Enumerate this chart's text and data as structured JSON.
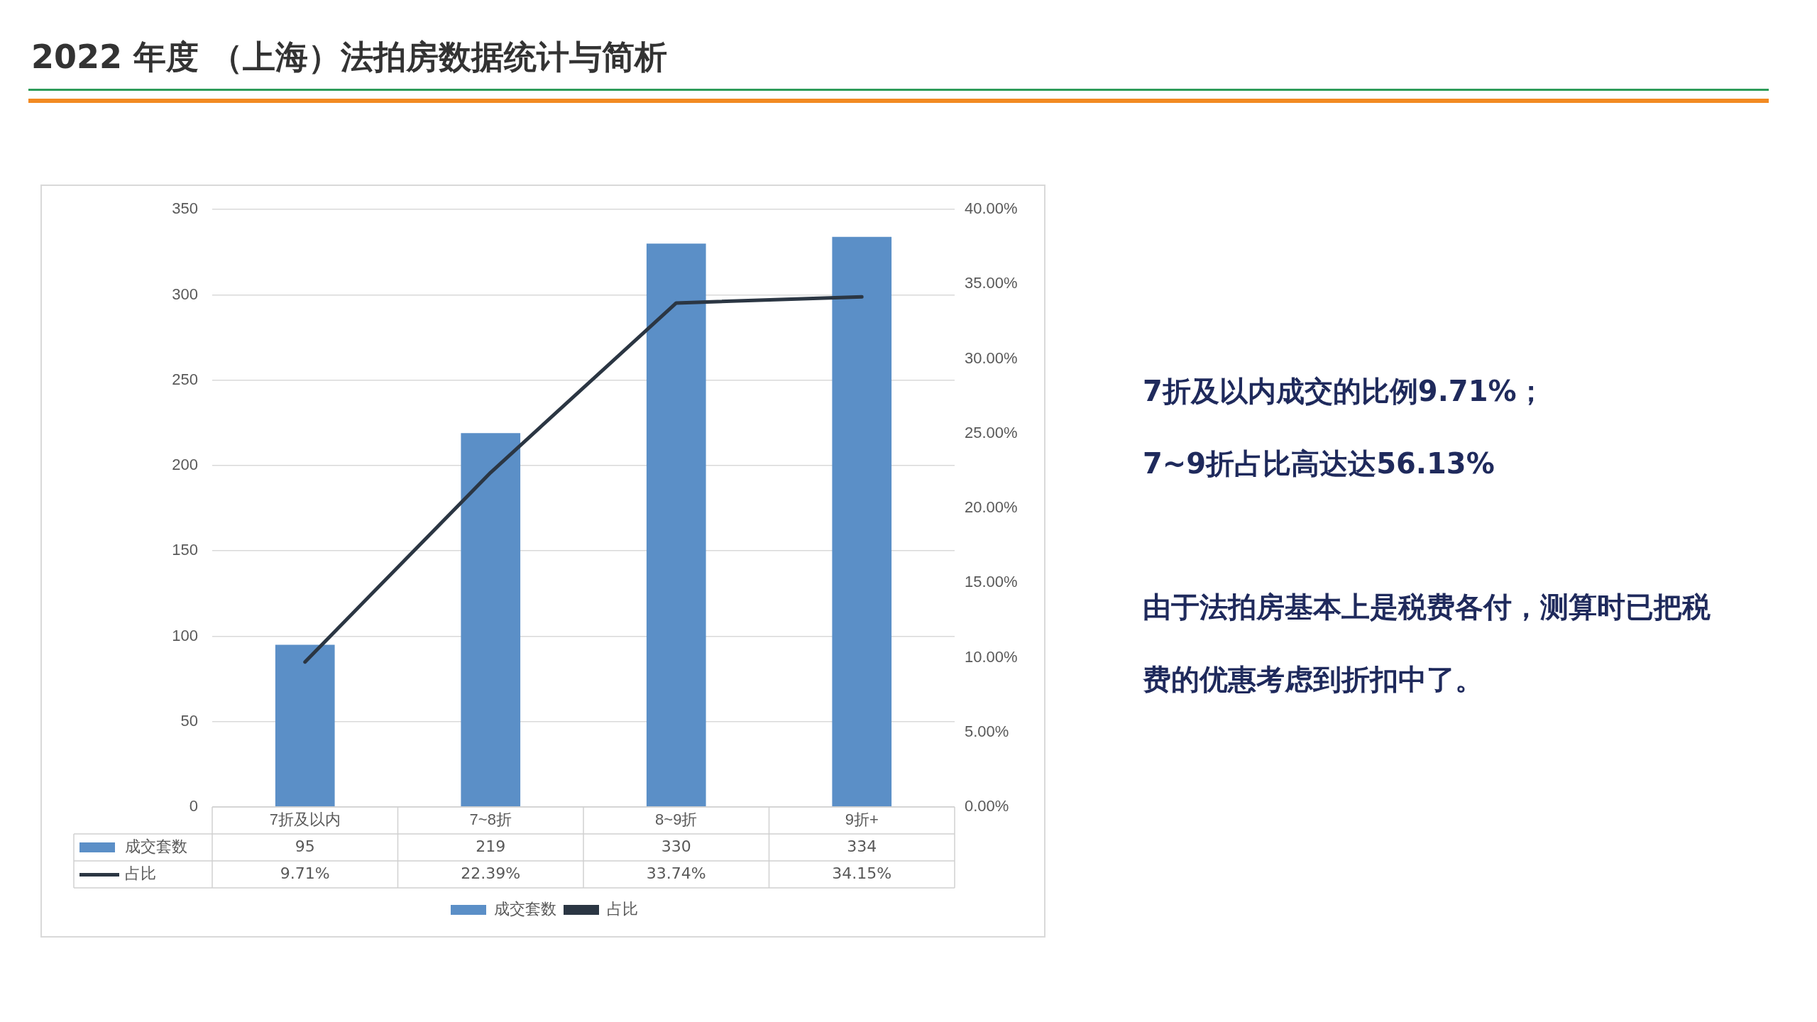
{
  "chart_data": {
    "type": "bar",
    "title": "2022 年度 （上海）法拍房数据统计与简析",
    "categories": [
      "7折及以内",
      "7~8折",
      "8~9折",
      "9折+"
    ],
    "series": [
      {
        "name": "成交套数",
        "color": "#5b8fc7",
        "values": [
          95,
          219,
          330,
          334
        ]
      },
      {
        "name": "占比",
        "type": "line",
        "axis": "y2",
        "color": "#2b3643",
        "values": [
          9.71,
          22.39,
          33.74,
          34.15
        ],
        "value_labels": [
          "9.71%",
          "22.39%",
          "33.74%",
          "34.15%"
        ]
      }
    ],
    "ylim": [
      0,
      350
    ],
    "yticks": [
      0,
      50,
      100,
      150,
      200,
      250,
      300,
      350
    ],
    "y2lim": [
      0,
      40
    ],
    "y2ticks": [
      {
        "value": 0,
        "label": "0.00%"
      },
      {
        "value": 5,
        "label": "5.00%"
      },
      {
        "value": 10,
        "label": "10.00%"
      },
      {
        "value": 15,
        "label": "15.00%"
      },
      {
        "value": 20,
        "label": "20.00%"
      },
      {
        "value": 25,
        "label": "25.00%"
      },
      {
        "value": 30,
        "label": "30.00%"
      },
      {
        "value": 35,
        "label": "35.00%"
      },
      {
        "value": 40,
        "label": "40.00%"
      }
    ],
    "grid": "y",
    "legend": "bottom",
    "data_labels": true,
    "marker": "none",
    "annotations": [
      "7折及以内成交的比例9.71%；",
      "7~9折占比高达达56.13%",
      "由于法拍房基本上是税费各付，测算时已把税费的优惠考虑到折扣中了。"
    ]
  }
}
